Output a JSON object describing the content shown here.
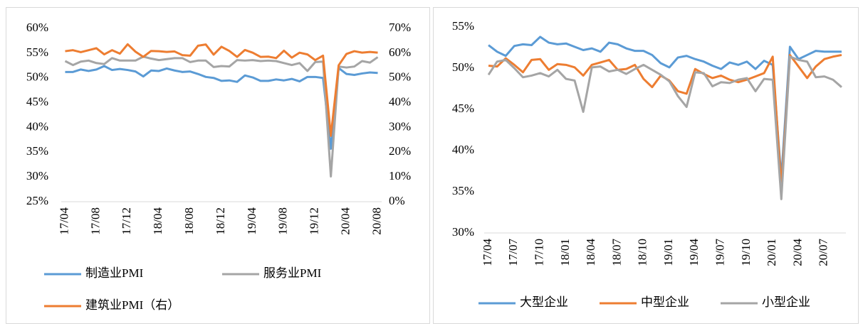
{
  "chart_data": [
    {
      "type": "line",
      "categories": [
        "17/04",
        null,
        null,
        null,
        "17/08",
        null,
        null,
        null,
        "17/12",
        null,
        null,
        null,
        "18/04",
        null,
        null,
        null,
        "18/08",
        null,
        null,
        null,
        "18/12",
        null,
        null,
        null,
        "19/04",
        null,
        null,
        null,
        "19/08",
        null,
        null,
        null,
        "19/12",
        null,
        null,
        null,
        "20/04",
        null,
        null,
        null,
        "20/08"
      ],
      "series": [
        {
          "name": "制造业PMI",
          "color": "#5b9bd5",
          "values": [
            51.2,
            51.2,
            51.7,
            51.4,
            51.7,
            52.4,
            51.6,
            51.8,
            51.6,
            51.3,
            50.3,
            51.5,
            51.4,
            51.9,
            51.5,
            51.2,
            51.3,
            50.8,
            50.2,
            50.0,
            49.4,
            49.5,
            49.2,
            50.5,
            50.1,
            49.4,
            49.4,
            49.7,
            49.5,
            49.8,
            49.3,
            50.2,
            50.2,
            50.0,
            35.7,
            52.0,
            50.8,
            50.6,
            50.9,
            51.1,
            51.0
          ]
        },
        {
          "name": "服务业PMI",
          "color": "#a5a5a5",
          "values": [
            53.4,
            52.6,
            53.3,
            53.5,
            53.0,
            52.8,
            54.0,
            53.5,
            53.5,
            53.5,
            54.3,
            53.9,
            53.6,
            53.8,
            54.0,
            54.0,
            53.2,
            53.5,
            53.5,
            52.2,
            52.4,
            52.3,
            53.6,
            53.5,
            53.6,
            53.4,
            53.5,
            53.4,
            53.0,
            52.6,
            53.0,
            51.4,
            53.2,
            53.3,
            30.1,
            52.3,
            52.1,
            52.3,
            53.4,
            53.1,
            54.2
          ]
        },
        {
          "name": "建筑业PMI（右）",
          "color": "#ed7d31",
          "axis": "y2",
          "values": [
            60.8,
            61.2,
            60.4,
            61.2,
            62.0,
            59.5,
            61.2,
            59.8,
            63.6,
            60.6,
            58.5,
            60.9,
            60.8,
            60.5,
            60.7,
            59.2,
            59.0,
            63.0,
            63.5,
            59.4,
            62.6,
            60.9,
            58.5,
            61.3,
            60.2,
            58.5,
            58.6,
            58.0,
            61.0,
            58.2,
            60.2,
            59.5,
            57.2,
            59.0,
            26.6,
            55.1,
            59.7,
            60.8,
            60.2,
            60.5,
            60.2
          ]
        }
      ],
      "ylim": [
        25,
        60
      ],
      "yticks": [
        {
          "value": 25,
          "label": "25%"
        },
        {
          "value": 30,
          "label": "30%"
        },
        {
          "value": 35,
          "label": "35%"
        },
        {
          "value": 40,
          "label": "40%"
        },
        {
          "value": 45,
          "label": "45%"
        },
        {
          "value": 50,
          "label": "50%"
        },
        {
          "value": 55,
          "label": "55%"
        },
        {
          "value": 60,
          "label": "60%"
        }
      ],
      "y2lim": [
        0,
        70
      ],
      "y2ticks": [
        {
          "value": 0,
          "label": "0%"
        },
        {
          "value": 10,
          "label": "10%"
        },
        {
          "value": 20,
          "label": "20%"
        },
        {
          "value": 30,
          "label": "30%"
        },
        {
          "value": 40,
          "label": "40%"
        },
        {
          "value": 50,
          "label": "50%"
        },
        {
          "value": 60,
          "label": "60%"
        },
        {
          "value": 70,
          "label": "70%"
        }
      ],
      "legend": "bottom"
    },
    {
      "type": "line",
      "categories": [
        "17/04",
        null,
        null,
        "17/07",
        null,
        null,
        "17/10",
        null,
        null,
        "18/01",
        null,
        null,
        "18/04",
        null,
        null,
        "18/07",
        null,
        null,
        "18/10",
        null,
        null,
        "19/01",
        null,
        null,
        "19/04",
        null,
        null,
        "19/07",
        null,
        null,
        "19/10",
        null,
        null,
        "20/01",
        null,
        null,
        "20/04",
        null,
        null,
        "20/07",
        null,
        null
      ],
      "series": [
        {
          "name": "大型企业",
          "color": "#5b9bd5",
          "values": [
            52.8,
            52.0,
            51.5,
            52.7,
            52.9,
            52.8,
            53.8,
            53.1,
            52.9,
            53.0,
            52.6,
            52.2,
            52.4,
            52.0,
            53.1,
            52.9,
            52.4,
            52.1,
            52.1,
            51.6,
            50.6,
            50.1,
            51.3,
            51.5,
            51.1,
            50.8,
            50.3,
            49.9,
            50.7,
            50.4,
            50.8,
            49.9,
            50.9,
            50.4,
            36.6,
            52.6,
            51.1,
            51.6,
            52.1,
            52.0,
            52.0,
            52.0
          ]
        },
        {
          "name": "中型企业",
          "color": "#ed7d31",
          "values": [
            50.3,
            50.2,
            51.2,
            50.4,
            49.5,
            51.0,
            51.1,
            49.8,
            50.5,
            50.4,
            50.1,
            49.1,
            50.4,
            50.7,
            51.0,
            49.8,
            49.9,
            50.4,
            48.7,
            47.7,
            49.1,
            48.5,
            47.2,
            46.9,
            49.9,
            49.3,
            48.8,
            49.1,
            48.6,
            48.3,
            48.6,
            49.0,
            49.4,
            51.4,
            35.5,
            51.6,
            50.2,
            48.8,
            50.2,
            51.1,
            51.4,
            51.6
          ]
        },
        {
          "name": "小型企业",
          "color": "#a5a5a5",
          "values": [
            49.2,
            50.8,
            51.0,
            50.0,
            48.9,
            49.1,
            49.4,
            49.0,
            49.8,
            48.7,
            48.5,
            44.7,
            50.1,
            50.2,
            49.6,
            49.8,
            49.3,
            49.9,
            50.4,
            49.8,
            49.2,
            48.4,
            46.6,
            45.3,
            49.5,
            49.4,
            47.8,
            48.3,
            48.2,
            48.6,
            48.8,
            47.2,
            48.7,
            48.6,
            34.1,
            51.4,
            51.0,
            50.8,
            48.9,
            49.0,
            48.6,
            47.7
          ]
        }
      ],
      "ylim": [
        30,
        55
      ],
      "yticks": [
        {
          "value": 30,
          "label": "30%"
        },
        {
          "value": 35,
          "label": "35%"
        },
        {
          "value": 40,
          "label": "40%"
        },
        {
          "value": 45,
          "label": "45%"
        },
        {
          "value": 50,
          "label": "50%"
        },
        {
          "value": 55,
          "label": "55%"
        }
      ],
      "legend": "bottom"
    }
  ]
}
